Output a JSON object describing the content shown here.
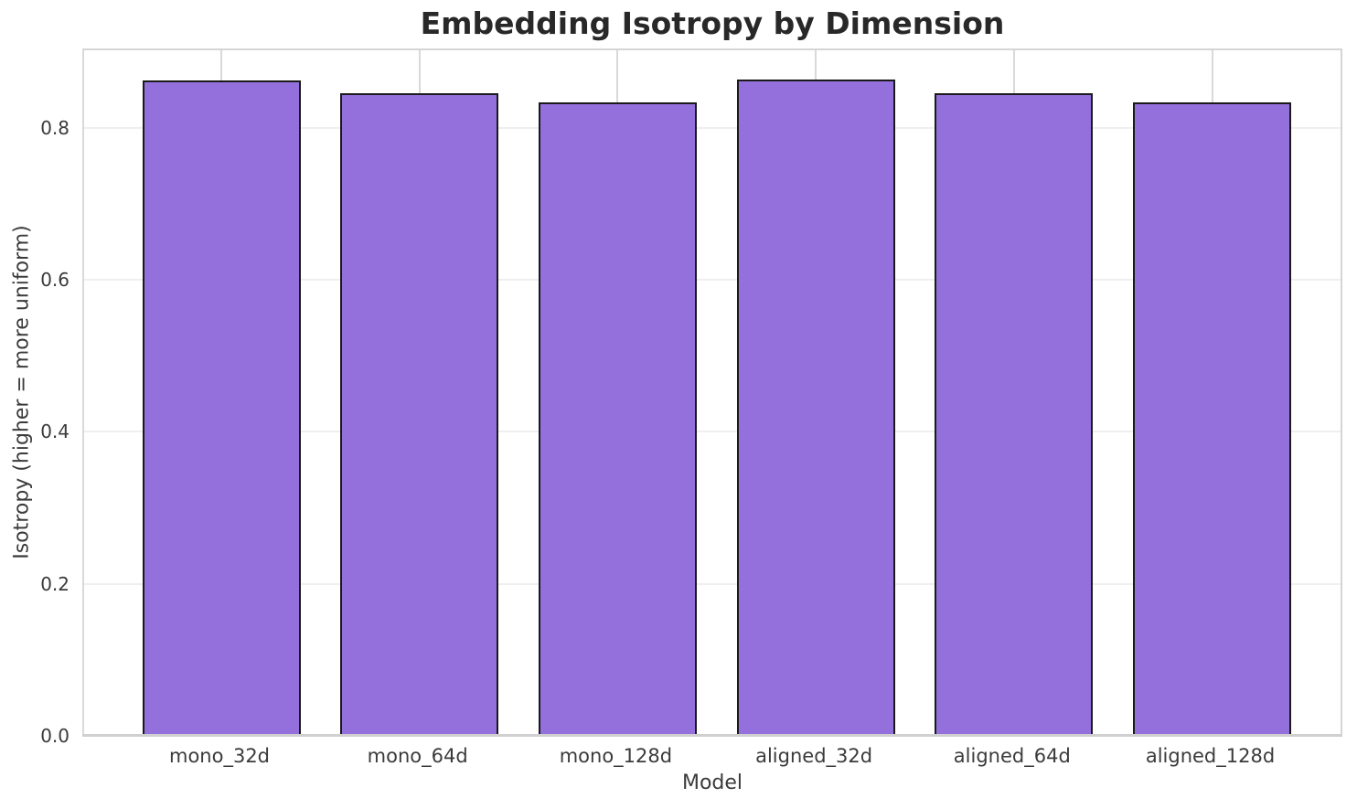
{
  "chart_data": {
    "type": "bar",
    "title": "Embedding Isotropy by Dimension",
    "xlabel": "Model",
    "ylabel": "Isotropy (higher = more uniform)",
    "categories": [
      "mono_32d",
      "mono_64d",
      "mono_128d",
      "aligned_32d",
      "aligned_64d",
      "aligned_128d"
    ],
    "values": [
      0.862,
      0.845,
      0.833,
      0.863,
      0.845,
      0.833
    ],
    "ylim": [
      0,
      0.904
    ],
    "yticks": [
      0.0,
      0.2,
      0.4,
      0.6,
      0.8
    ],
    "ytick_labels": [
      "0.0",
      "0.2",
      "0.4",
      "0.6",
      "0.8"
    ],
    "grid": true,
    "legend": null,
    "bar_color": "#9370DB",
    "bar_edge_color": "#1a1a1a",
    "grid_color_horizontal": "#efefef",
    "grid_color_vertical": "#d9d9d9",
    "title_color": "#282828",
    "tick_label_color": "#3b3b3b"
  }
}
